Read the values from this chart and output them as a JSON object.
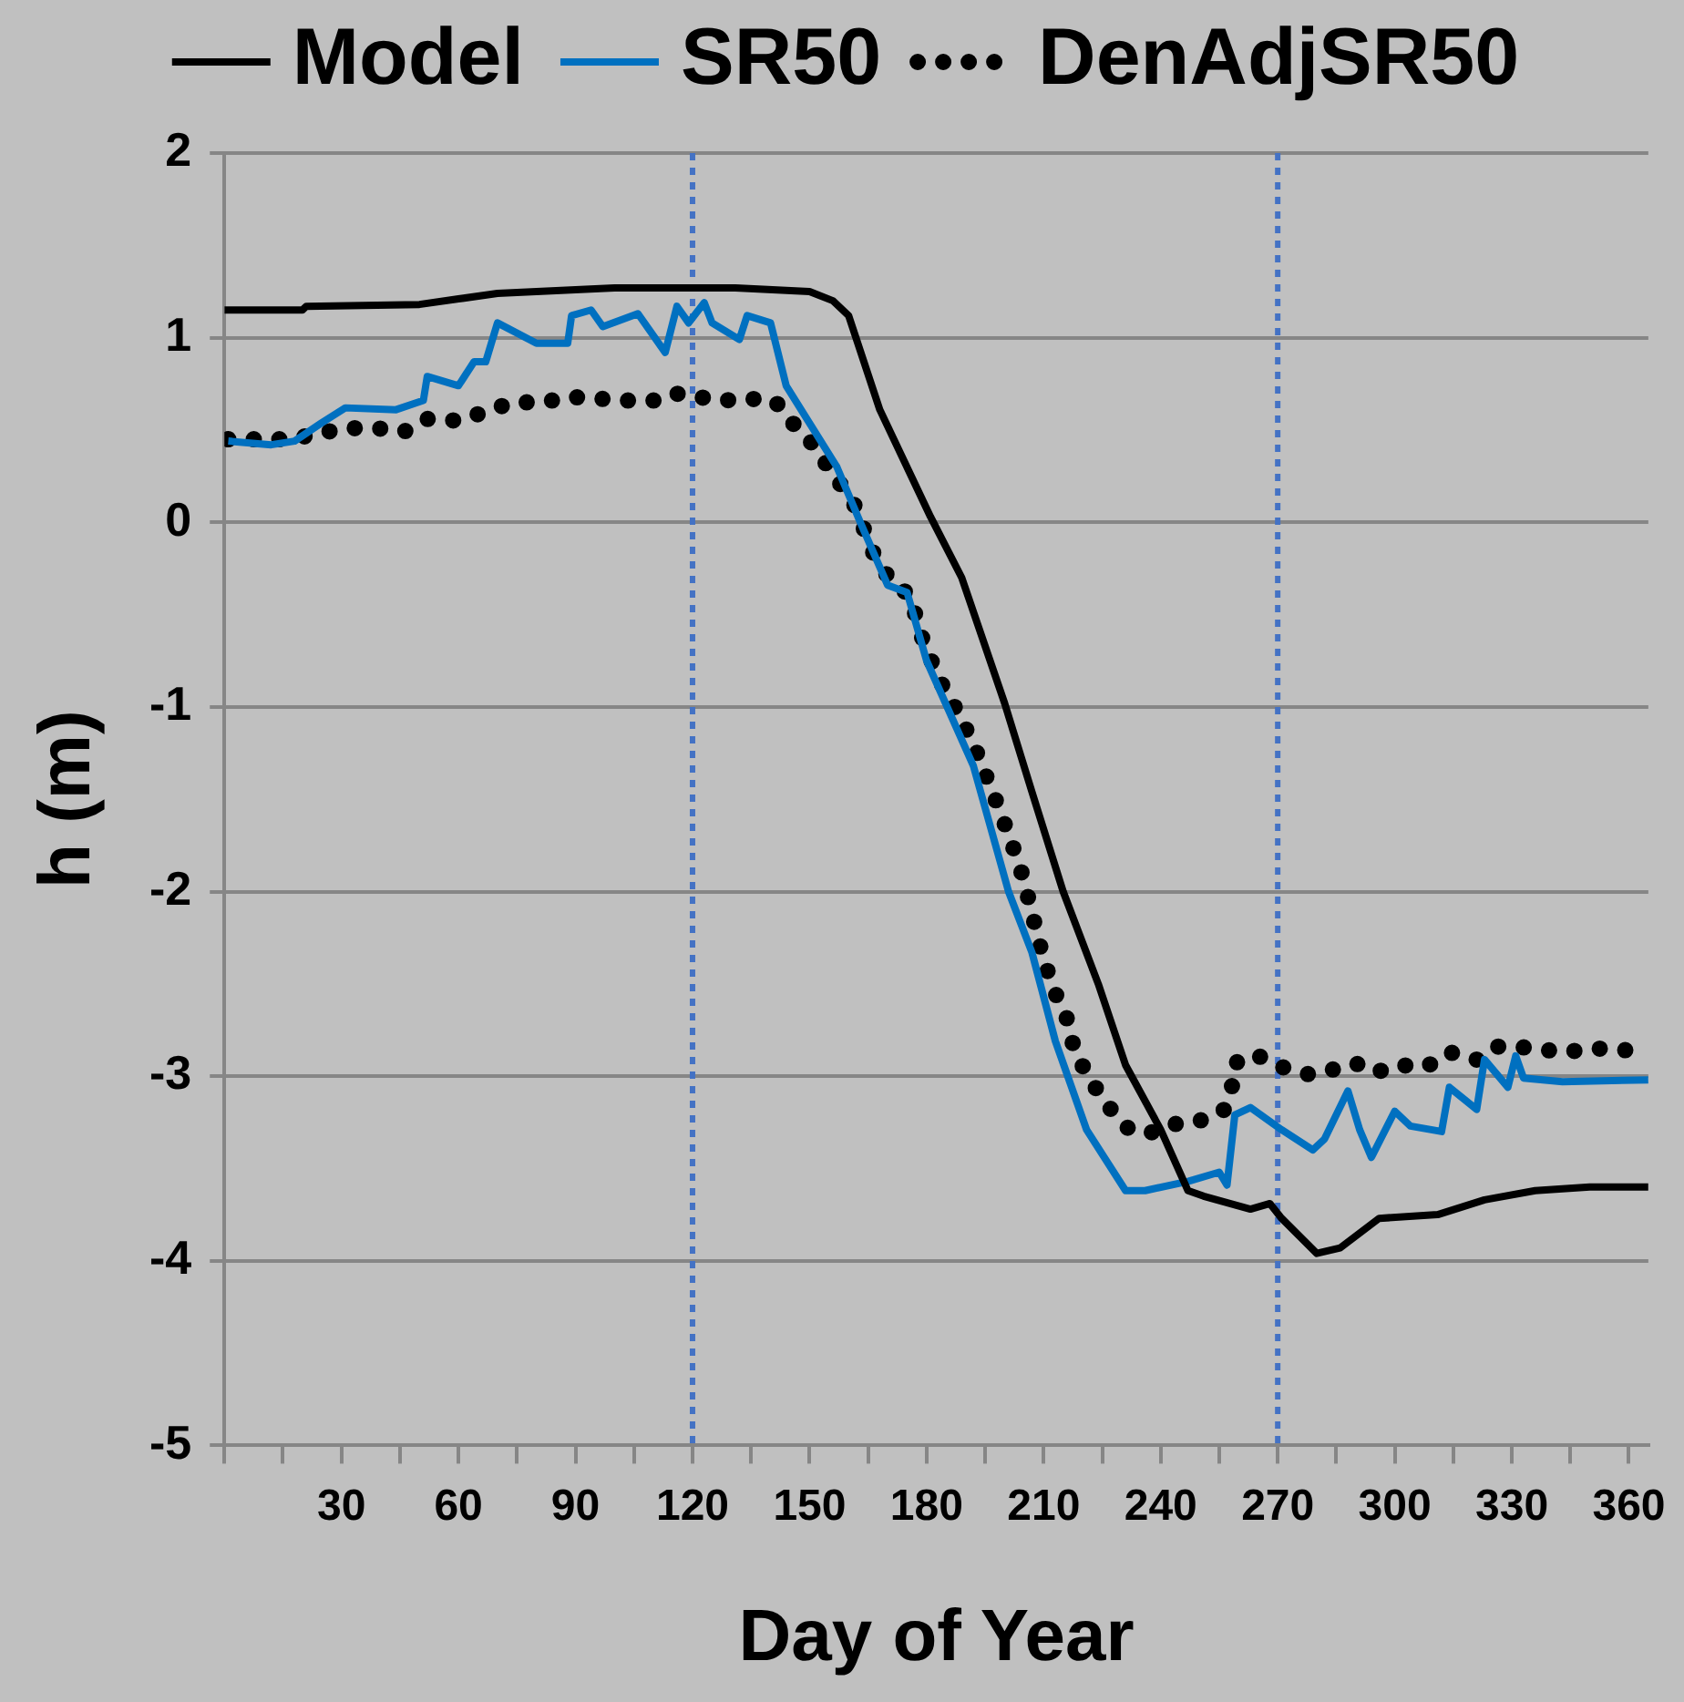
{
  "chart_data": {
    "type": "line",
    "xlabel": "Day of Year",
    "ylabel": "h (m)",
    "xlim": [
      0,
      365
    ],
    "ylim": [
      -5,
      2
    ],
    "xticks": [
      {
        "value": 0,
        "label": null
      },
      {
        "value": 15,
        "label": null
      },
      30,
      {
        "value": 45,
        "label": null
      },
      60,
      {
        "value": 75,
        "label": null
      },
      90,
      {
        "value": 105,
        "label": null
      },
      120,
      {
        "value": 135,
        "label": null
      },
      150,
      {
        "value": 165,
        "label": null
      },
      180,
      {
        "value": 195,
        "label": null
      },
      210,
      {
        "value": 225,
        "label": null
      },
      240,
      {
        "value": 255,
        "label": null
      },
      270,
      {
        "value": 285,
        "label": null
      },
      300,
      {
        "value": 315,
        "label": null
      },
      330,
      {
        "value": 345,
        "label": null
      },
      360
    ],
    "yticks": [
      -5,
      -4,
      -3,
      -2,
      -1,
      0,
      1,
      2
    ],
    "grid": "y",
    "legend": "top",
    "ref_lines": [
      {
        "axis": "x",
        "value": 120,
        "color": "#4472c4",
        "line_style": "dotted"
      },
      {
        "axis": "x",
        "value": 270,
        "color": "#4472c4",
        "line_style": "dotted"
      }
    ],
    "series": [
      {
        "name": "Model",
        "color": "#000000",
        "line_style": "solid",
        "x": [
          0,
          20,
          21,
          50,
          60,
          70,
          80,
          100,
          131,
          150,
          156,
          160,
          168,
          181,
          189,
          200,
          207,
          215,
          224,
          231,
          240,
          247,
          251,
          263,
          268,
          271,
          280,
          286,
          296,
          311,
          323,
          336,
          350,
          365
        ],
        "values": [
          1.15,
          1.15,
          1.17,
          1.18,
          1.21,
          1.24,
          1.25,
          1.27,
          1.27,
          1.25,
          1.2,
          1.12,
          0.61,
          0.03,
          -0.3,
          -0.98,
          -1.46,
          -2.0,
          -2.5,
          -2.94,
          -3.29,
          -3.62,
          -3.65,
          -3.72,
          -3.69,
          -3.77,
          -3.96,
          -3.93,
          -3.77,
          -3.75,
          -3.67,
          -3.62,
          -3.6,
          -3.6
        ]
      },
      {
        "name": "SR50",
        "color": "#0070c0",
        "line_style": "solid",
        "x": [
          1,
          12,
          18,
          25,
          31,
          44,
          51,
          52,
          60,
          64,
          67,
          70,
          80,
          88,
          89,
          94,
          97,
          106,
          113,
          116,
          119,
          123,
          125,
          132,
          134,
          140,
          144,
          157,
          163,
          170,
          175,
          180,
          192,
          201,
          207,
          213,
          221,
          231,
          236,
          247,
          255,
          257,
          259,
          263,
          271,
          279,
          282,
          288,
          291,
          294,
          300,
          304,
          312,
          314,
          321,
          323,
          329,
          331,
          333,
          343,
          365
        ],
        "values": [
          0.44,
          0.42,
          0.44,
          0.54,
          0.62,
          0.61,
          0.66,
          0.79,
          0.74,
          0.87,
          0.87,
          1.08,
          0.97,
          0.97,
          1.12,
          1.15,
          1.06,
          1.13,
          0.92,
          1.17,
          1.08,
          1.19,
          1.08,
          0.99,
          1.12,
          1.08,
          0.74,
          0.3,
          0.0,
          -0.34,
          -0.38,
          -0.75,
          -1.32,
          -2.0,
          -2.33,
          -2.81,
          -3.29,
          -3.62,
          -3.62,
          -3.57,
          -3.52,
          -3.59,
          -3.21,
          -3.17,
          -3.29,
          -3.4,
          -3.34,
          -3.08,
          -3.29,
          -3.44,
          -3.19,
          -3.27,
          -3.3,
          -3.06,
          -3.18,
          -2.91,
          -3.06,
          -2.89,
          -3.01,
          -3.03,
          -3.02
        ]
      },
      {
        "name": "DenAdjSR50",
        "color": "#000000",
        "line_style": "dotted",
        "x": [
          1,
          9,
          17,
          24,
          31,
          39,
          46,
          52,
          60,
          67,
          74,
          82,
          88,
          96,
          103,
          110,
          115,
          121,
          128,
          134,
          141,
          146,
          151,
          156,
          161,
          164,
          167,
          171,
          176,
          178,
          181,
          184,
          188,
          192,
          195,
          198,
          201,
          204,
          206,
          208,
          210,
          213,
          216,
          218,
          222,
          226,
          232,
          237,
          243,
          249,
          256,
          258,
          259,
          264,
          271,
          278,
          285,
          290,
          295,
          301,
          308,
          314,
          321,
          326,
          331,
          336,
          343,
          352,
          360
        ],
        "values": [
          0.45,
          0.45,
          0.45,
          0.48,
          0.51,
          0.51,
          0.49,
          0.56,
          0.55,
          0.6,
          0.65,
          0.65,
          0.68,
          0.67,
          0.66,
          0.66,
          0.7,
          0.68,
          0.66,
          0.67,
          0.66,
          0.53,
          0.42,
          0.26,
          0.12,
          -0.04,
          -0.2,
          -0.32,
          -0.4,
          -0.58,
          -0.74,
          -0.88,
          -1.03,
          -1.2,
          -1.36,
          -1.52,
          -1.69,
          -1.87,
          -2.03,
          -2.2,
          -2.37,
          -2.55,
          -2.69,
          -2.87,
          -3.02,
          -3.15,
          -3.29,
          -3.31,
          -3.26,
          -3.25,
          -3.19,
          -3.1,
          -2.93,
          -2.88,
          -2.95,
          -2.99,
          -2.96,
          -2.93,
          -2.98,
          -2.94,
          -2.95,
          -2.87,
          -2.91,
          -2.84,
          -2.84,
          -2.85,
          -2.87,
          -2.85,
          -2.86
        ]
      }
    ]
  }
}
